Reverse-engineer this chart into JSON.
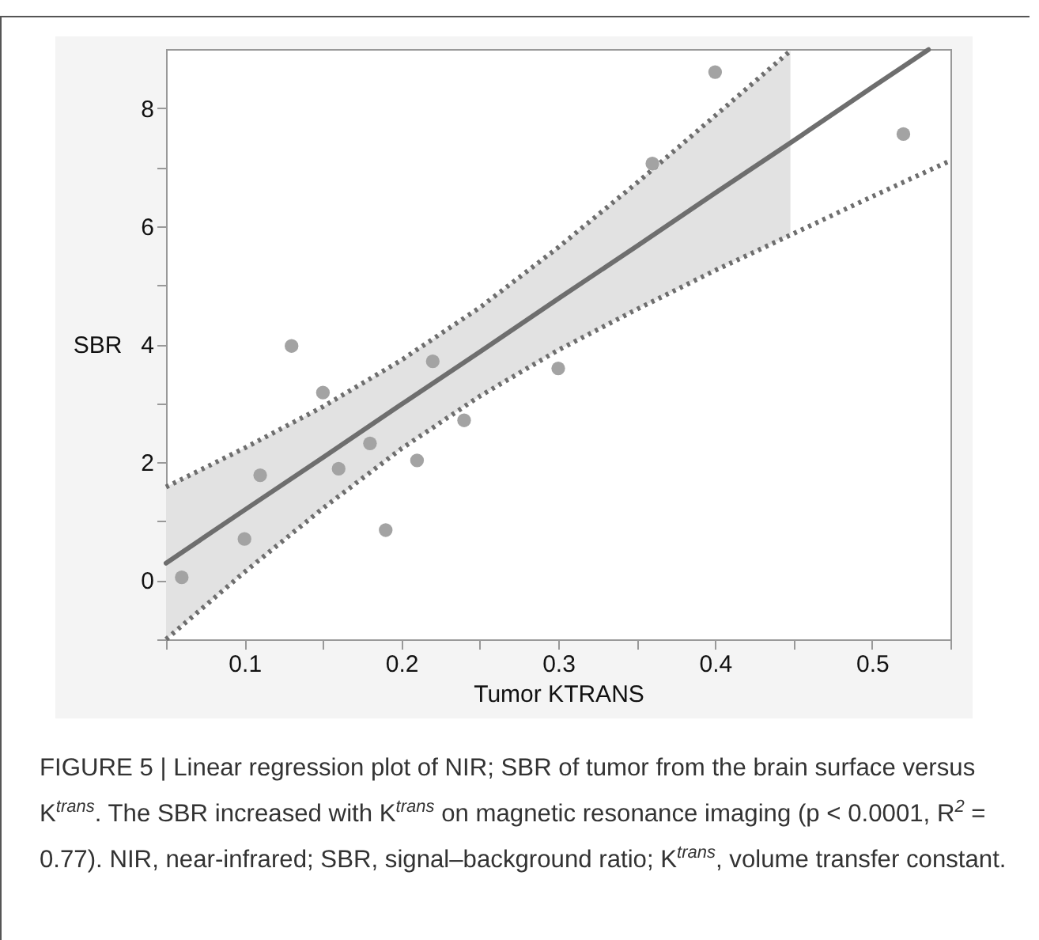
{
  "chart_data": {
    "type": "scatter",
    "xlabel": "Tumor KTRANS",
    "ylabel": "SBR",
    "xlim": [
      0.05,
      0.55
    ],
    "xticks": [
      {
        "value": 0.05,
        "label": null
      },
      0.1,
      {
        "value": 0.15,
        "label": null
      },
      0.2,
      {
        "value": 0.25,
        "label": null
      },
      0.3,
      {
        "value": 0.35,
        "label": null
      },
      0.4,
      {
        "value": 0.45,
        "label": null
      },
      0.5,
      {
        "value": 0.55,
        "label": null
      }
    ],
    "ylim": [
      -1,
      9
    ],
    "yticks": [
      {
        "value": -1,
        "label": null
      },
      0,
      {
        "value": 1,
        "label": null
      },
      2,
      {
        "value": 3,
        "label": null
      },
      4,
      {
        "value": 5,
        "label": null
      },
      6,
      {
        "value": 7,
        "label": null
      },
      8
    ],
    "grid": false,
    "marker": "circle",
    "series": [
      {
        "type": "line",
        "color": "#6e6e6e",
        "line_style": "solid",
        "marker": "none",
        "x": [
          0.05,
          0.1,
          0.15,
          0.2,
          0.25,
          0.3,
          0.35,
          0.4,
          0.448,
          0.5,
          0.536
        ],
        "values": [
          0.29,
          1.19,
          2.08,
          2.98,
          3.87,
          4.77,
          5.66,
          6.56,
          7.41,
          8.35,
          8.99
        ],
        "lower": [
          -1.0,
          0.14,
          1.22,
          2.23,
          3.12,
          3.9,
          4.59,
          5.25,
          5.85,
          null,
          null
        ],
        "upper": [
          1.58,
          2.24,
          2.94,
          3.73,
          4.62,
          5.64,
          6.73,
          7.87,
          8.97,
          null,
          null
        ]
      },
      {
        "type": "line",
        "color": "#6e6e6e",
        "line_style": "dotted",
        "marker": "none",
        "x": [
          0.05,
          0.1,
          0.15,
          0.2,
          0.25,
          0.3,
          0.35,
          0.4,
          0.448,
          0.5,
          0.536,
          0.55
        ],
        "values": [
          -1.0,
          0.14,
          1.22,
          2.23,
          3.12,
          3.9,
          4.59,
          5.25,
          5.85,
          6.5,
          6.94,
          7.11
        ]
      },
      {
        "type": "line",
        "color": "#6e6e6e",
        "line_style": "dotted",
        "marker": "none",
        "x": [
          0.05,
          0.1,
          0.15,
          0.2,
          0.25,
          0.3,
          0.35,
          0.4,
          0.448
        ],
        "values": [
          1.58,
          2.24,
          2.94,
          3.73,
          4.62,
          5.64,
          6.73,
          7.87,
          8.97
        ]
      },
      {
        "type": "scatter",
        "color": "#a3a3a3",
        "x": [
          0.06,
          0.1,
          0.11,
          0.13,
          0.15,
          0.16,
          0.18,
          0.19,
          0.21,
          0.22,
          0.24,
          0.3,
          0.36,
          0.4,
          0.52
        ],
        "values": [
          0.05,
          0.7,
          1.78,
          3.97,
          3.18,
          1.89,
          2.32,
          0.85,
          2.03,
          3.71,
          2.71,
          3.59,
          7.06,
          8.61,
          7.56
        ]
      }
    ],
    "annotations": [
      "FIGURE 5 | Linear regression plot of NIR; SBR of tumor from the brain surface versus K$^{trans}$. The SBR increased with K$^{trans}$ on magnetic resonance imaging (p < 0.0001, R$^{2}$ = 0.77). NIR, near-infrared; SBR, signal–background ratio; K$^{trans}$, volume transfer constant."
    ]
  }
}
